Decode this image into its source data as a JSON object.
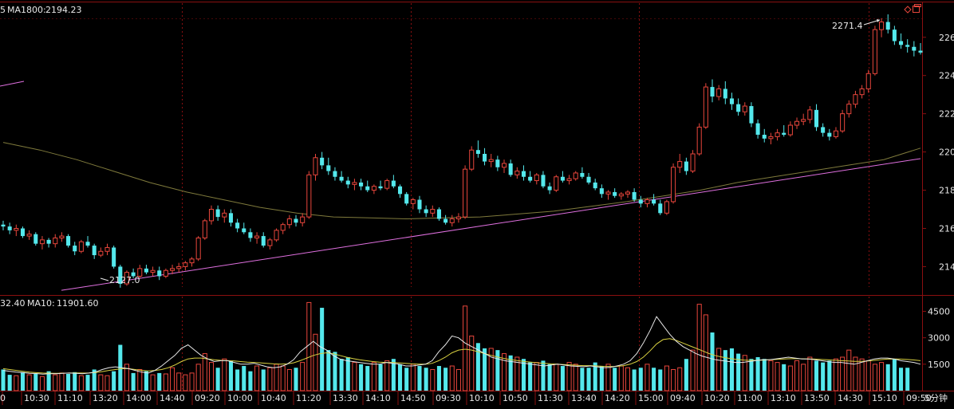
{
  "price_panel": {
    "label_prefix": "5",
    "ma_label": "MA1800:",
    "ma_value": "2194.23",
    "high_annotation": "2271.4",
    "low_annotation": "2127.0",
    "y_ticks": [
      "226",
      "224",
      "222",
      "220",
      "218",
      "216",
      "214"
    ]
  },
  "volume_panel": {
    "vol_value": "32.40",
    "ma_label": "MA10:",
    "ma_value": "11901.60",
    "y_ticks": [
      "4500",
      "3000",
      "1500"
    ]
  },
  "x_axis": {
    "labels": [
      "0",
      "10:30",
      "11:10",
      "13:20",
      "14:00",
      "14:40",
      "09:20",
      "10:00",
      "10:40",
      "11:20",
      "13:30",
      "14:10",
      "14:50",
      "09:30",
      "10:10",
      "10:50",
      "11:30",
      "13:40",
      "14:20",
      "15:00",
      "09:40",
      "10:20",
      "11:00",
      "13:10",
      "13:50",
      "14:30",
      "15:10",
      "09:50"
    ],
    "period_label": "5分钟"
  },
  "colors": {
    "up": "#e8463c",
    "down": "#54e8ec",
    "grid": "#8a0f10",
    "ma_line": "#7f7a3c",
    "trend_line": "#e070e0",
    "ma_vol_white": "#e8e8e8",
    "ma_vol_yellow": "#d8d040"
  },
  "chart_data": [
    {
      "type": "candlestick",
      "series_name": "MA1800",
      "y_unit": "points",
      "ylim": [
        2126,
        2277
      ],
      "annotated_high": 2271.4,
      "annotated_low": 2127.0,
      "ma1800_last": 2194.23,
      "candles": [
        [
          2162,
          2164,
          2159,
          2161
        ],
        [
          2161,
          2163,
          2157,
          2159
        ],
        [
          2159,
          2162,
          2156,
          2160
        ],
        [
          2160,
          2161,
          2155,
          2156
        ],
        [
          2156,
          2159,
          2154,
          2157
        ],
        [
          2157,
          2158,
          2151,
          2152
        ],
        [
          2152,
          2156,
          2149,
          2154
        ],
        [
          2154,
          2155,
          2150,
          2152
        ],
        [
          2152,
          2157,
          2150,
          2155
        ],
        [
          2155,
          2158,
          2153,
          2156
        ],
        [
          2156,
          2157,
          2150,
          2151
        ],
        [
          2151,
          2153,
          2146,
          2148
        ],
        [
          2148,
          2154,
          2147,
          2153
        ],
        [
          2153,
          2156,
          2150,
          2151
        ],
        [
          2151,
          2152,
          2144,
          2146
        ],
        [
          2146,
          2150,
          2145,
          2148
        ],
        [
          2148,
          2152,
          2146,
          2150
        ],
        [
          2150,
          2151,
          2139,
          2140
        ],
        [
          2140,
          2141,
          2129,
          2131
        ],
        [
          2131,
          2138,
          2130,
          2137
        ],
        [
          2137,
          2139,
          2134,
          2135
        ],
        [
          2135,
          2141,
          2134,
          2139
        ],
        [
          2139,
          2141,
          2136,
          2137
        ],
        [
          2137,
          2140,
          2135,
          2138
        ],
        [
          2138,
          2140,
          2133,
          2135
        ],
        [
          2135,
          2139,
          2134,
          2138
        ],
        [
          2138,
          2141,
          2136,
          2139
        ],
        [
          2139,
          2142,
          2137,
          2140
        ],
        [
          2140,
          2143,
          2138,
          2142
        ],
        [
          2142,
          2145,
          2140,
          2144
        ],
        [
          2144,
          2156,
          2143,
          2155
        ],
        [
          2155,
          2165,
          2154,
          2164
        ],
        [
          2164,
          2172,
          2162,
          2170
        ],
        [
          2170,
          2172,
          2164,
          2166
        ],
        [
          2166,
          2170,
          2163,
          2168
        ],
        [
          2168,
          2170,
          2161,
          2163
        ],
        [
          2163,
          2165,
          2158,
          2160
        ],
        [
          2160,
          2163,
          2157,
          2158
        ],
        [
          2158,
          2160,
          2153,
          2155
        ],
        [
          2155,
          2158,
          2152,
          2156
        ],
        [
          2156,
          2158,
          2150,
          2151
        ],
        [
          2151,
          2155,
          2149,
          2154
        ],
        [
          2154,
          2160,
          2153,
          2159
        ],
        [
          2159,
          2163,
          2157,
          2162
        ],
        [
          2162,
          2167,
          2160,
          2165
        ],
        [
          2165,
          2167,
          2161,
          2163
        ],
        [
          2163,
          2168,
          2161,
          2166
        ],
        [
          2166,
          2190,
          2165,
          2188
        ],
        [
          2188,
          2199,
          2185,
          2197
        ],
        [
          2197,
          2200,
          2191,
          2193
        ],
        [
          2193,
          2197,
          2188,
          2190
        ],
        [
          2190,
          2192,
          2185,
          2187
        ],
        [
          2187,
          2190,
          2184,
          2185
        ],
        [
          2185,
          2187,
          2181,
          2183
        ],
        [
          2183,
          2186,
          2180,
          2184
        ],
        [
          2184,
          2186,
          2180,
          2182
        ],
        [
          2182,
          2185,
          2179,
          2180
        ],
        [
          2180,
          2183,
          2178,
          2182
        ],
        [
          2182,
          2185,
          2180,
          2181
        ],
        [
          2181,
          2186,
          2180,
          2185
        ],
        [
          2185,
          2188,
          2181,
          2182
        ],
        [
          2182,
          2183,
          2176,
          2178
        ],
        [
          2178,
          2179,
          2172,
          2173
        ],
        [
          2173,
          2176,
          2170,
          2175
        ],
        [
          2175,
          2177,
          2168,
          2170
        ],
        [
          2170,
          2172,
          2166,
          2168
        ],
        [
          2168,
          2172,
          2166,
          2170
        ],
        [
          2170,
          2171,
          2164,
          2165
        ],
        [
          2165,
          2167,
          2162,
          2163
        ],
        [
          2163,
          2167,
          2161,
          2165
        ],
        [
          2165,
          2168,
          2163,
          2166
        ],
        [
          2166,
          2193,
          2165,
          2191
        ],
        [
          2191,
          2203,
          2190,
          2201
        ],
        [
          2201,
          2206,
          2197,
          2199
        ],
        [
          2199,
          2202,
          2193,
          2195
        ],
        [
          2195,
          2199,
          2192,
          2196
        ],
        [
          2196,
          2198,
          2190,
          2192
        ],
        [
          2192,
          2196,
          2189,
          2194
        ],
        [
          2194,
          2196,
          2187,
          2188
        ],
        [
          2188,
          2192,
          2186,
          2190
        ],
        [
          2190,
          2193,
          2185,
          2187
        ],
        [
          2187,
          2190,
          2184,
          2185
        ],
        [
          2185,
          2189,
          2183,
          2188
        ],
        [
          2188,
          2190,
          2181,
          2182
        ],
        [
          2182,
          2184,
          2178,
          2180
        ],
        [
          2180,
          2188,
          2179,
          2187
        ],
        [
          2187,
          2190,
          2184,
          2185
        ],
        [
          2185,
          2188,
          2183,
          2186
        ],
        [
          2186,
          2190,
          2185,
          2189
        ],
        [
          2189,
          2192,
          2186,
          2187
        ],
        [
          2187,
          2189,
          2183,
          2184
        ],
        [
          2184,
          2186,
          2180,
          2181
        ],
        [
          2181,
          2183,
          2176,
          2178
        ],
        [
          2178,
          2180,
          2175,
          2179
        ],
        [
          2179,
          2181,
          2176,
          2177
        ],
        [
          2177,
          2179,
          2175,
          2178
        ],
        [
          2178,
          2180,
          2176,
          2179
        ],
        [
          2179,
          2181,
          2174,
          2175
        ],
        [
          2175,
          2177,
          2171,
          2173
        ],
        [
          2173,
          2176,
          2171,
          2175
        ],
        [
          2175,
          2178,
          2172,
          2173
        ],
        [
          2173,
          2175,
          2167,
          2168
        ],
        [
          2168,
          2175,
          2167,
          2174
        ],
        [
          2174,
          2194,
          2173,
          2192
        ],
        [
          2192,
          2199,
          2189,
          2195
        ],
        [
          2195,
          2197,
          2188,
          2190
        ],
        [
          2190,
          2201,
          2189,
          2199
        ],
        [
          2199,
          2215,
          2198,
          2213
        ],
        [
          2213,
          2236,
          2212,
          2234
        ],
        [
          2234,
          2238,
          2226,
          2229
        ],
        [
          2229,
          2235,
          2227,
          2233
        ],
        [
          2233,
          2237,
          2225,
          2228
        ],
        [
          2228,
          2231,
          2222,
          2225
        ],
        [
          2225,
          2228,
          2219,
          2221
        ],
        [
          2221,
          2226,
          2219,
          2224
        ],
        [
          2224,
          2226,
          2213,
          2215
        ],
        [
          2215,
          2217,
          2207,
          2209
        ],
        [
          2209,
          2212,
          2205,
          2207
        ],
        [
          2207,
          2210,
          2204,
          2208
        ],
        [
          2208,
          2212,
          2206,
          2210
        ],
        [
          2210,
          2214,
          2208,
          2209
        ],
        [
          2209,
          2216,
          2208,
          2214
        ],
        [
          2214,
          2218,
          2212,
          2216
        ],
        [
          2216,
          2220,
          2214,
          2217
        ],
        [
          2217,
          2224,
          2215,
          2222
        ],
        [
          2222,
          2225,
          2211,
          2213
        ],
        [
          2213,
          2215,
          2208,
          2210
        ],
        [
          2210,
          2212,
          2206,
          2208
        ],
        [
          2208,
          2213,
          2207,
          2211
        ],
        [
          2211,
          2222,
          2210,
          2220
        ],
        [
          2220,
          2227,
          2218,
          2225
        ],
        [
          2225,
          2232,
          2223,
          2230
        ],
        [
          2230,
          2235,
          2228,
          2233
        ],
        [
          2233,
          2243,
          2231,
          2241
        ],
        [
          2241,
          2266,
          2240,
          2264
        ],
        [
          2264,
          2270,
          2260,
          2268
        ],
        [
          2268,
          2272,
          2262,
          2264
        ],
        [
          2264,
          2266,
          2256,
          2258
        ],
        [
          2258,
          2262,
          2254,
          2256
        ],
        [
          2256,
          2259,
          2252,
          2255
        ],
        [
          2255,
          2258,
          2250,
          2253
        ],
        [
          2253,
          2257,
          2251,
          2252
        ]
      ],
      "ma1800_path": [
        2205,
        2201,
        2196,
        2190,
        2184,
        2179,
        2175,
        2171,
        2168,
        2166,
        2165.5,
        2165,
        2165.5,
        2166,
        2167.5,
        2169,
        2171.5,
        2174,
        2177,
        2180,
        2184,
        2187,
        2190,
        2193,
        2196,
        2202
      ],
      "trend_line": {
        "from": 2127.6,
        "to": 2196.5
      }
    },
    {
      "type": "bar",
      "series_name": "MA10",
      "ylim": [
        0,
        5200
      ],
      "ma10_last": 11901.6,
      "volumes": [
        1200,
        900,
        850,
        1050,
        900,
        950,
        800,
        1100,
        900,
        1000,
        950,
        1050,
        850,
        900,
        1200,
        900,
        850,
        1100,
        2600,
        1500,
        1000,
        1200,
        1100,
        900,
        1000,
        950,
        1300,
        1000,
        900,
        1000,
        1500,
        2100,
        1600,
        1300,
        1800,
        1700,
        1200,
        1400,
        1100,
        1400,
        1200,
        1300,
        1500,
        1400,
        1200,
        1300,
        1600,
        5000,
        3200,
        4700,
        2300,
        2200,
        1800,
        1900,
        1600,
        1500,
        1400,
        1600,
        1500,
        1700,
        1800,
        1500,
        1300,
        1500,
        1400,
        1300,
        1200,
        1400,
        1300,
        1400,
        1200,
        4800,
        3100,
        2700,
        2400,
        2400,
        2300,
        2100,
        2000,
        1900,
        1800,
        1600,
        1600,
        1700,
        1500,
        1500,
        1400,
        1600,
        1500,
        1300,
        1300,
        1600,
        1400,
        1500,
        1300,
        1400,
        1300,
        1200,
        1300,
        1500,
        1300,
        1200,
        1400,
        1200,
        1300,
        1800,
        2300,
        4900,
        4300,
        3300,
        2400,
        2300,
        2400,
        2100,
        2000,
        1800,
        1900,
        1800,
        1700,
        1600,
        1500,
        1400,
        1700,
        1500,
        1900,
        1700,
        1600,
        1700,
        1800,
        1900,
        2300,
        1900,
        1800,
        1700,
        1500,
        1600,
        1500,
        1800,
        1300,
        1300
      ],
      "ma10_white": [
        1150,
        1100,
        1050,
        1020,
        980,
        970,
        940,
        960,
        960,
        980,
        1000,
        980,
        960,
        1000,
        1060,
        1200,
        1300,
        1350,
        1300,
        1250,
        1150,
        1050,
        1000,
        1150,
        1400,
        1700,
        2000,
        2400,
        2600,
        2300,
        2000,
        1800,
        1650,
        1700,
        1700,
        1600,
        1500,
        1500,
        1550,
        1450,
        1350,
        1300,
        1350,
        1500,
        1750,
        2200,
        2500,
        2800,
        2500,
        2300,
        2000,
        1800,
        1700,
        1650,
        1600,
        1550,
        1500,
        1500,
        1600,
        1550,
        1500,
        1400,
        1400,
        1450,
        1500,
        1700,
        2200,
        2600,
        3100,
        3000,
        2700,
        2500,
        2300,
        2100,
        1900,
        1800,
        1700,
        1650,
        1600,
        1550,
        1500,
        1450,
        1400,
        1450,
        1500,
        1450,
        1400,
        1380,
        1360,
        1400,
        1350,
        1300,
        1320,
        1400,
        1500,
        1700,
        2100,
        2700,
        3400,
        4200,
        3700,
        3200,
        2800,
        2500,
        2300,
        2100,
        1950,
        1850,
        1750,
        1700,
        1650,
        1600,
        1600,
        1650,
        1700,
        1750,
        1750,
        1800,
        1850,
        1900,
        1850,
        1800,
        1800,
        1750,
        1700,
        1650,
        1600,
        1600,
        1550,
        1500,
        1600,
        1700,
        1800,
        1850,
        1850,
        1800,
        1700,
        1650,
        1600,
        1500
      ],
      "ma10_yellow": [
        1250,
        1200,
        1150,
        1100,
        1050,
        1020,
        1000,
        990,
        980,
        990,
        1000,
        1010,
        1000,
        1010,
        1030,
        1080,
        1150,
        1200,
        1250,
        1250,
        1200,
        1150,
        1120,
        1150,
        1200,
        1300,
        1450,
        1650,
        1800,
        1850,
        1850,
        1800,
        1750,
        1720,
        1700,
        1680,
        1650,
        1620,
        1600,
        1580,
        1550,
        1520,
        1500,
        1520,
        1580,
        1700,
        1850,
        2000,
        2100,
        2150,
        2100,
        2000,
        1900,
        1820,
        1750,
        1700,
        1650,
        1620,
        1600,
        1600,
        1580,
        1550,
        1520,
        1500,
        1500,
        1550,
        1700,
        1900,
        2150,
        2300,
        2350,
        2300,
        2200,
        2100,
        2000,
        1900,
        1820,
        1750,
        1700,
        1650,
        1620,
        1580,
        1550,
        1520,
        1500,
        1480,
        1460,
        1440,
        1420,
        1420,
        1400,
        1380,
        1370,
        1380,
        1420,
        1500,
        1650,
        1900,
        2250,
        2650,
        2900,
        2950,
        2850,
        2700,
        2550,
        2400,
        2250,
        2100,
        1980,
        1900,
        1830,
        1780,
        1740,
        1720,
        1720,
        1730,
        1750,
        1770,
        1790,
        1810,
        1820,
        1810,
        1800,
        1790,
        1770,
        1750,
        1720,
        1700,
        1680,
        1660,
        1660,
        1680,
        1720,
        1760,
        1790,
        1800,
        1790,
        1770,
        1740,
        1700
      ]
    }
  ]
}
